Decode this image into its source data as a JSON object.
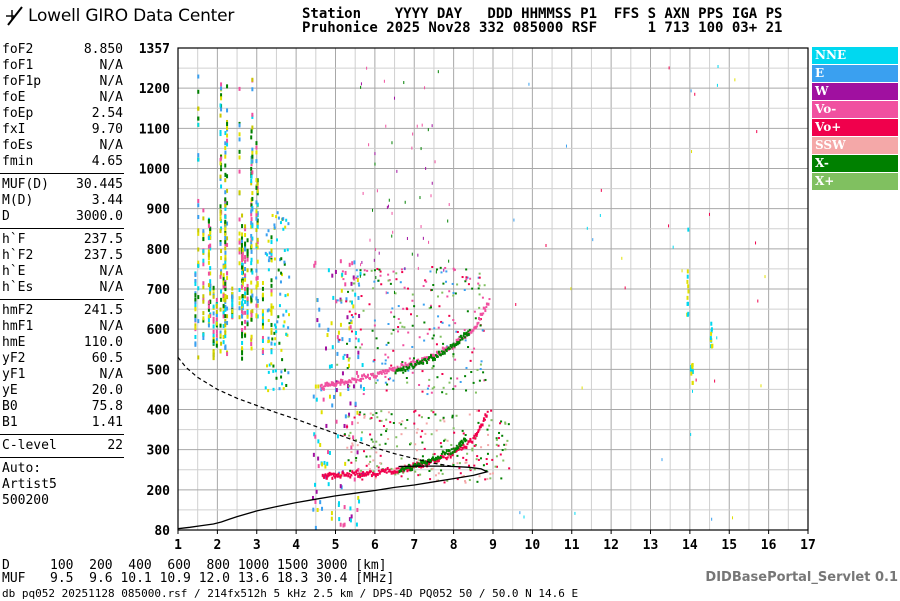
{
  "brand": {
    "logo_text": "Lowell GIRO Data Center"
  },
  "header": {
    "line1": "Station    YYYY DAY   DDD HHMMSS P1  FFS S AXN PPS IGA PS",
    "line2": "Pruhonice 2025 Nov28 332 085000 RSF      1 713 100 03+ 21"
  },
  "params": [
    {
      "k": "foF2",
      "v": "8.850"
    },
    {
      "k": "foF1",
      "v": "N/A"
    },
    {
      "k": "foF1p",
      "v": "N/A"
    },
    {
      "k": "foE",
      "v": "N/A"
    },
    {
      "k": "foEp",
      "v": "2.54"
    },
    {
      "k": "fxI",
      "v": "9.70"
    },
    {
      "k": "foEs",
      "v": "N/A"
    },
    {
      "k": "fmin",
      "v": "4.65"
    },
    {
      "sep": true
    },
    {
      "k": "MUF(D)",
      "v": "30.445"
    },
    {
      "k": "M(D)",
      "v": "3.44"
    },
    {
      "k": "D",
      "v": "3000.0"
    },
    {
      "sep": true
    },
    {
      "k": "h`F",
      "v": "237.5"
    },
    {
      "k": "h`F2",
      "v": "237.5"
    },
    {
      "k": "h`E",
      "v": "N/A"
    },
    {
      "k": "h`Es",
      "v": "N/A"
    },
    {
      "sep": true
    },
    {
      "k": "hmF2",
      "v": "241.5"
    },
    {
      "k": "hmF1",
      "v": "N/A"
    },
    {
      "k": "hmE",
      "v": "110.0"
    },
    {
      "k": "yF2",
      "v": "60.5"
    },
    {
      "k": "yF1",
      "v": "N/A"
    },
    {
      "k": "yE",
      "v": "20.0"
    },
    {
      "k": "B0",
      "v": "75.8"
    },
    {
      "k": "B1",
      "v": "1.41"
    },
    {
      "sep": true
    },
    {
      "k": "C-level",
      "v": "22"
    },
    {
      "sep": true
    }
  ],
  "auto": {
    "line1": "Auto:",
    "line2": "Artist5",
    "line3": "500200"
  },
  "legend": [
    {
      "label": "NNE",
      "color": "#00d8f0"
    },
    {
      "label": "E",
      "color": "#3aa0f0"
    },
    {
      "label": "W",
      "color": "#a010a0"
    },
    {
      "label": "Vo-",
      "color": "#f050a0"
    },
    {
      "label": "Vo+",
      "color": "#f0004c"
    },
    {
      "label": "SSW",
      "color": "#f4a8a8"
    },
    {
      "label": "X-",
      "color": "#008000"
    },
    {
      "label": "X+",
      "color": "#80c060"
    }
  ],
  "footer": {
    "d_label": "D",
    "d_values": "100  200  400  600  800 1000 1500 3000 [km]",
    "muf_label": "MUF",
    "muf_values": "9.5  9.6 10.1 10.9 12.0 13.6 18.3 30.4 [MHz]",
    "file_line": "db pq052 20251128 085000.rsf / 214fx512h 5 kHz 2.5 km / DPS-4D PQ052 50 / 50.0 N 14.6 E",
    "servlet": "DIDBasePortal_Servlet 0.1"
  },
  "chart_data": {
    "type": "scatter",
    "xlim": [
      1,
      17
    ],
    "ylim": [
      80,
      1357
    ],
    "x_ticks": [
      1,
      2,
      3,
      4,
      5,
      6,
      7,
      8,
      9,
      10,
      11,
      12,
      13,
      14,
      15,
      16,
      17
    ],
    "y_ticks": [
      80,
      200,
      300,
      400,
      500,
      600,
      700,
      800,
      900,
      1000,
      1100,
      1200,
      1357
    ],
    "grid": true,
    "ionogram_traces": [
      {
        "name": "Vo+",
        "x": [
          4.65,
          5.0,
          5.5,
          6.0,
          6.5,
          7.0,
          7.5,
          8.0,
          8.5,
          8.85
        ],
        "y": [
          237,
          240,
          242,
          246,
          252,
          262,
          276,
          296,
          330,
          400
        ]
      },
      {
        "name": "X-",
        "x": [
          6.6,
          7.0,
          7.5,
          8.0,
          8.3
        ],
        "y": [
          250,
          262,
          282,
          305,
          330
        ]
      },
      {
        "name": "Vo-",
        "x": [
          4.6,
          5.0,
          5.5,
          6.0,
          6.5,
          7.0,
          7.5,
          8.0,
          8.5,
          8.9
        ],
        "y": [
          460,
          466,
          478,
          490,
          505,
          520,
          540,
          565,
          605,
          680
        ]
      },
      {
        "name": "X-",
        "x": [
          6.5,
          7.0,
          7.5,
          8.0,
          8.4
        ],
        "y": [
          500,
          515,
          535,
          565,
          600
        ]
      }
    ],
    "profile_solid": {
      "x": [
        1.0,
        1.3,
        1.6,
        1.9,
        2.1,
        2.3,
        2.5,
        3.0,
        3.5,
        4.0,
        4.5,
        5.0,
        5.5,
        6.0,
        6.5,
        7.0,
        7.5,
        8.0,
        8.5,
        8.85,
        8.7,
        8.4,
        8.0,
        7.6,
        7.1,
        6.6
      ],
      "y": [
        84,
        88,
        93,
        98,
        104,
        112,
        120,
        137,
        150,
        162,
        172,
        182,
        190,
        198,
        206,
        212,
        220,
        228,
        236,
        245,
        252,
        256,
        258,
        259,
        259,
        258
      ]
    },
    "profile_dashed": {
      "x": [
        1.0,
        1.2,
        1.5,
        2.0,
        2.5,
        3.0,
        3.5,
        4.0,
        4.5,
        5.0,
        5.5,
        6.0,
        6.5,
        7.0,
        7.5,
        8.0
      ],
      "y": [
        530,
        505,
        480,
        450,
        428,
        410,
        392,
        376,
        358,
        340,
        322,
        305,
        290,
        278,
        266,
        258
      ]
    }
  }
}
